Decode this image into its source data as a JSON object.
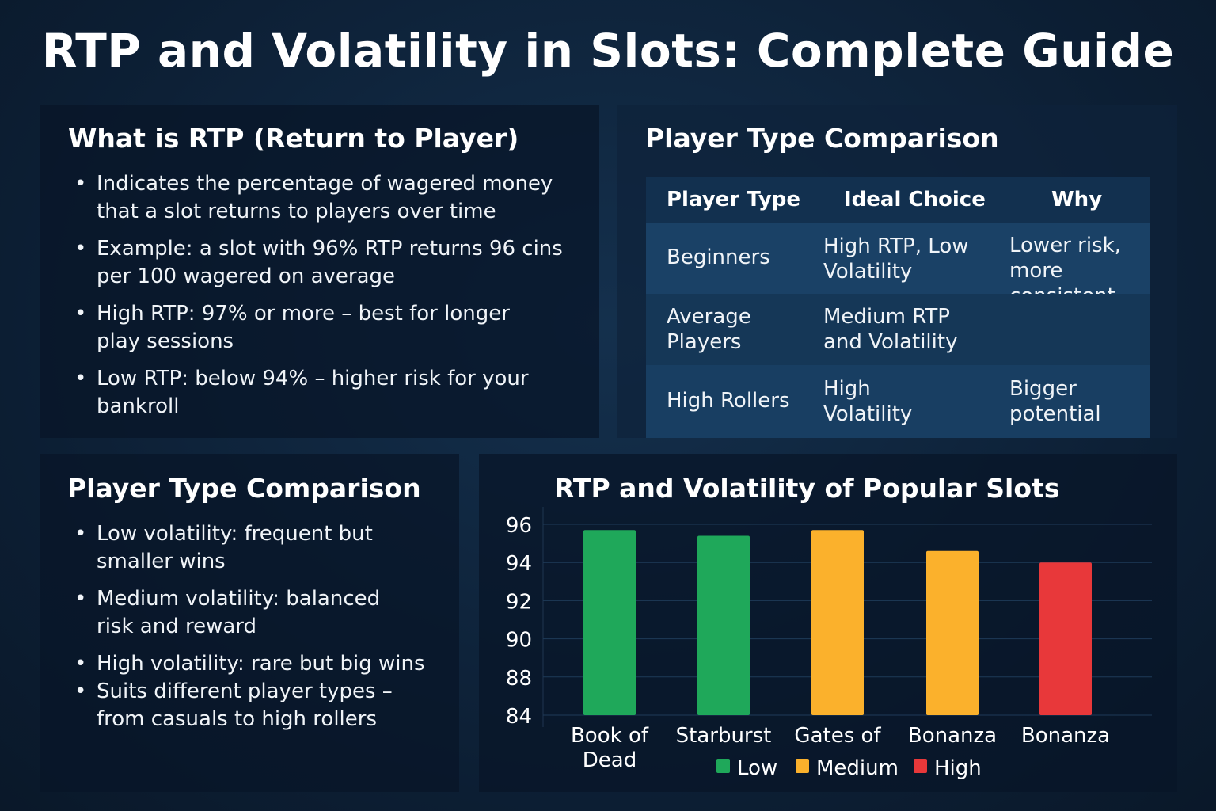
{
  "title": "RTP and Volatility in Slots: Complete Guide",
  "rtp_panel": {
    "heading": "What is RTP (Return to Player)",
    "bullets": [
      "Indicates the percentage of wagered money that a slot returns to players over time",
      "Example: a slot with 96% RTP returns 96 cins per 100 wagered on average",
      "High RTP: 97% or more – best for longer play sessions",
      "Low RTP: below 94% – higher risk for your bankroll"
    ]
  },
  "table_panel": {
    "heading": "Player Type Comparison",
    "columns": [
      "Player Type",
      "Ideal Choice",
      "Why"
    ],
    "rows": [
      {
        "player": "Beginners",
        "choice": "High RTP, Low Volatility",
        "why": "Lower risk, more consistent wins"
      },
      {
        "player": "Average Players",
        "choice": "Medium RTP and Volatility",
        "why": ""
      },
      {
        "player": "High Rollers",
        "choice": "High Volatility",
        "why": "Bigger potential"
      }
    ]
  },
  "volatility_panel": {
    "heading": "Player Type Comparison",
    "bullets": [
      "Low volatility: frequent but smaller wins",
      "Medium volatility: balanced risk and reward",
      "High volatility: rare but big wins",
      "Suits different player types – from casuals to high rollers"
    ]
  },
  "chart_data": {
    "type": "bar",
    "title": "RTP and Volatility of Popular Slots",
    "categories": [
      "Book of Dead",
      "Starburst",
      "Gates of",
      "Bonanza",
      "Bonanza"
    ],
    "values": [
      95.7,
      95.4,
      95.7,
      94.6,
      94.0
    ],
    "volatility": [
      "Low",
      "Low",
      "Medium",
      "Medium",
      "High"
    ],
    "yticks": [
      84,
      88,
      90,
      92,
      94,
      96
    ],
    "grid": true,
    "legend_position": "bottom",
    "legend": [
      {
        "name": "Low",
        "color": "#1fa85a"
      },
      {
        "name": "Medium",
        "color": "#fbb12c"
      },
      {
        "name": "High",
        "color": "#e8383a"
      }
    ]
  }
}
